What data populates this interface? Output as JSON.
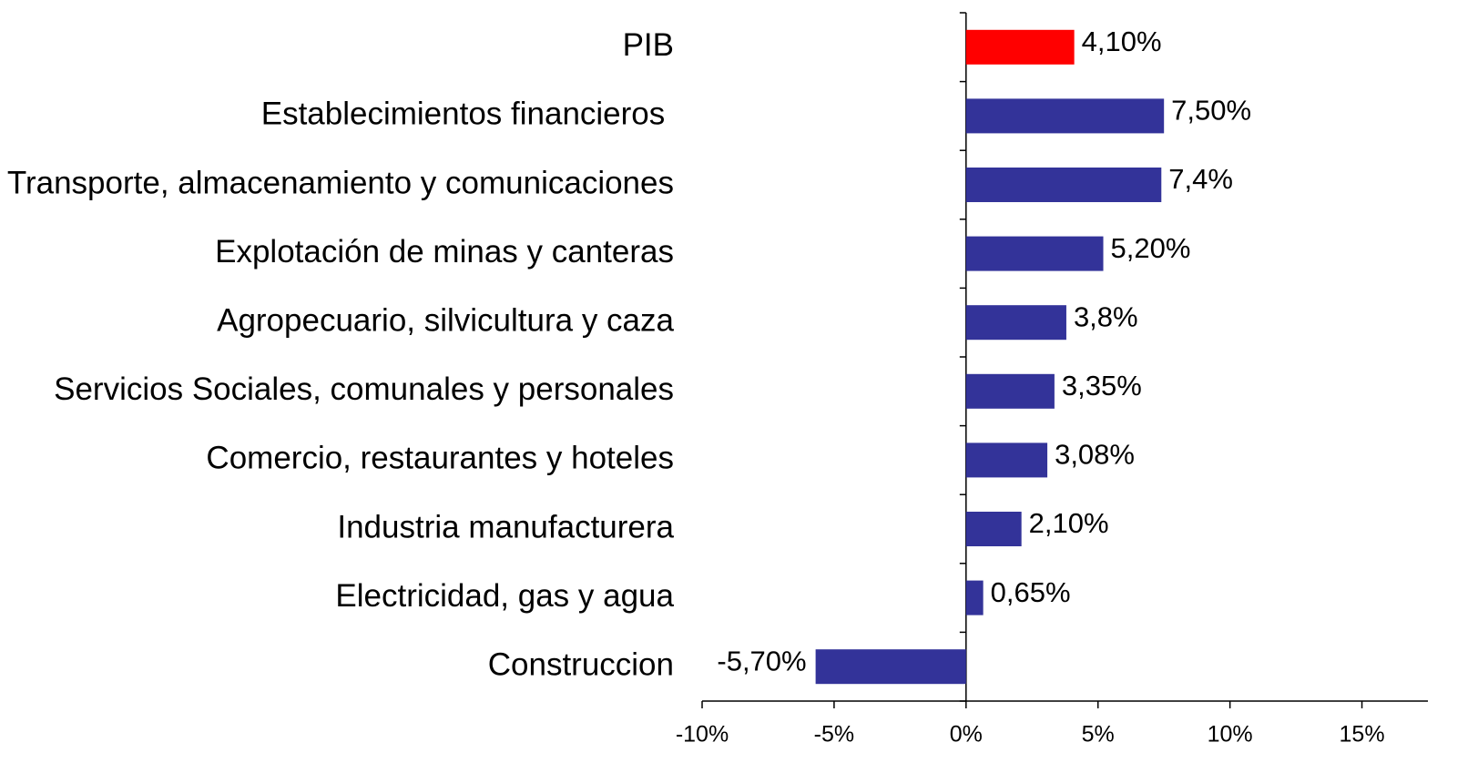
{
  "chart_data": {
    "type": "hbar",
    "categories": [
      "PIB",
      "Establecimientos financieros ",
      "Transporte, almacenamiento y comunicaciones",
      "Explotación de minas y canteras",
      "Agropecuario, silvicultura y caza",
      "Servicios Sociales, comunales y personales",
      "Comercio, restaurantes y hoteles",
      "Industria manufacturera",
      "Electricidad, gas y agua",
      "Construccion"
    ],
    "values": [
      4.1,
      7.5,
      7.4,
      5.2,
      3.8,
      3.35,
      3.08,
      2.1,
      0.65,
      -5.7
    ],
    "value_labels": [
      "4,10%",
      "7,50%",
      "7,4%",
      "5,20%",
      "3,8%",
      "3,35%",
      "3,08%",
      "2,10%",
      "0,65%",
      "-5,70%"
    ],
    "colors": [
      "#ff0000",
      "#333399",
      "#333399",
      "#333399",
      "#333399",
      "#333399",
      "#333399",
      "#333399",
      "#333399",
      "#333399"
    ],
    "xlim": [
      -10,
      17.5
    ],
    "xticks": [
      {
        "value": -10,
        "label": "-10%"
      },
      {
        "value": -5,
        "label": "-5%"
      },
      {
        "value": 0,
        "label": "0%"
      },
      {
        "value": 5,
        "label": "5%"
      },
      {
        "value": 10,
        "label": "10%"
      },
      {
        "value": 15,
        "label": "15%"
      }
    ],
    "grid": false
  }
}
